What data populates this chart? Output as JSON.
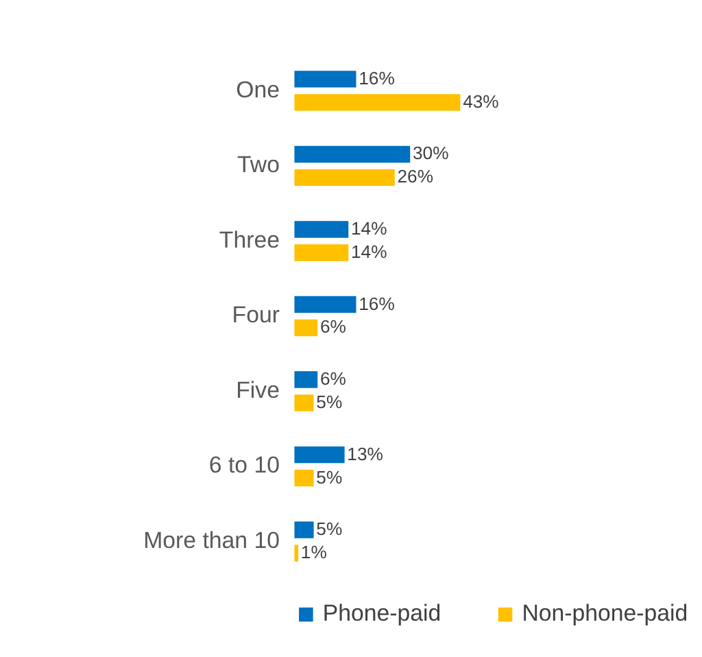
{
  "chart_data": {
    "type": "bar",
    "orientation": "horizontal",
    "legend": "bottom",
    "grid": false,
    "categories": [
      "One",
      "Two",
      "Three",
      "Four",
      "Five",
      "6 to 10",
      "More than 10"
    ],
    "series": [
      {
        "name": "Phone-paid",
        "color": "#0070c0",
        "values": [
          16,
          30,
          14,
          16,
          6,
          13,
          5
        ],
        "value_labels": [
          "16%",
          "30%",
          "14%",
          "16%",
          "6%",
          "13%",
          "5%"
        ]
      },
      {
        "name": "Non-phone-paid",
        "color": "#ffc000",
        "values": [
          43,
          26,
          14,
          6,
          5,
          5,
          1
        ],
        "value_labels": [
          "43%",
          "26%",
          "14%",
          "6%",
          "5%",
          "5%",
          "1%"
        ]
      }
    ]
  }
}
